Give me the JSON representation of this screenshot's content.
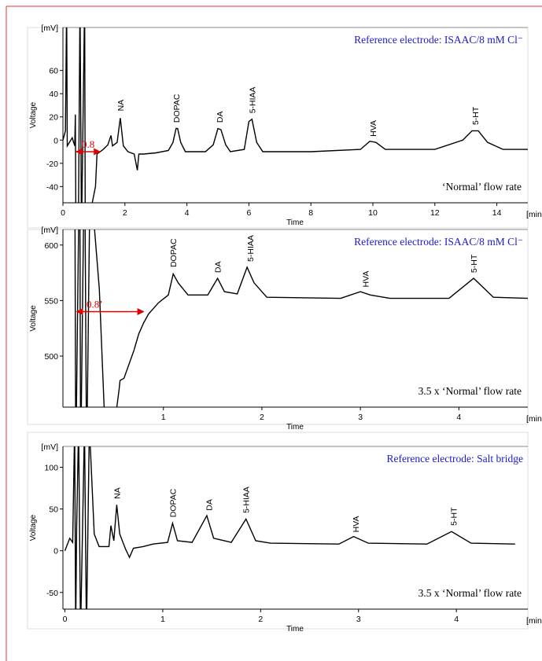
{
  "chart_data": [
    {
      "type": "line",
      "ylabel": "Voltage",
      "xlabel": "Time",
      "yunit": "[mV]",
      "xunit": "[min.]",
      "legend": "Reference electrode: ISAAC/8 mM Cl⁻",
      "note": "‘Normal’ flow rate",
      "xlim": [
        0,
        15
      ],
      "ylim": [
        -54,
        97
      ],
      "xticks": [
        0,
        2,
        4,
        6,
        8,
        10,
        12,
        14
      ],
      "yticks": [
        -40,
        -20,
        0,
        20,
        40,
        60
      ],
      "x": [
        0,
        0.08,
        0.12,
        0.14,
        0.3,
        0.38,
        0.4,
        0.42,
        0.5,
        0.55,
        0.6,
        0.7,
        0.72,
        0.9,
        1.05,
        1.1,
        1.3,
        1.45,
        1.55,
        1.6,
        1.75,
        1.85,
        1.95,
        2.1,
        2.3,
        2.4,
        2.45,
        2.6,
        3.0,
        3.4,
        3.55,
        3.65,
        3.7,
        3.8,
        3.95,
        4.6,
        4.85,
        5.0,
        5.1,
        5.25,
        5.4,
        5.85,
        6.0,
        6.1,
        6.25,
        6.45,
        8,
        9.6,
        9.9,
        10.1,
        10.4,
        12,
        12.9,
        13.2,
        13.4,
        13.7,
        14.2,
        15
      ],
      "series": [
        {
          "name": "Voltage",
          "color": "#000000",
          "values": [
            0,
            8,
            120,
            -5,
            2,
            -5,
            22,
            -80,
            -70,
            120,
            -80,
            120,
            -80,
            -60,
            -40,
            -12,
            -8,
            -4,
            4,
            -5,
            -2,
            19,
            -5,
            -10,
            -12,
            -26,
            -12,
            -12,
            -11,
            -9,
            -2,
            10,
            10,
            -2,
            -10,
            -10,
            -4,
            10,
            9,
            -4,
            -10,
            -8,
            16,
            18,
            -2,
            -10,
            -10,
            -8,
            -1,
            -2,
            -8,
            -8,
            0,
            8,
            8,
            -2,
            -8,
            -8
          ]
        }
      ],
      "annotations": [
        {
          "text": "NA",
          "x": 1.85,
          "y": 25
        },
        {
          "text": "DOPAC",
          "x": 3.65,
          "y": 15
        },
        {
          "text": "DA",
          "x": 5.05,
          "y": 15
        },
        {
          "text": "5-HIAA",
          "x": 6.1,
          "y": 23
        },
        {
          "text": "HVA",
          "x": 10,
          "y": 3
        },
        {
          "text": "5-HT",
          "x": 13.3,
          "y": 13
        }
      ],
      "arrow": {
        "text": "0.8",
        "x": [
          0.43,
          1.2
        ],
        "y": -10
      }
    },
    {
      "type": "line",
      "ylabel": "Voltage",
      "xlabel": "Time",
      "yunit": "[mV]",
      "xunit": "[min.]",
      "legend": "Reference electrode: ISAAC/8 mM Cl⁻",
      "note": "3.5 x ‘Normal’ flow rate",
      "xlim": [
        -0.02,
        4.7
      ],
      "ylim": [
        454,
        614
      ],
      "xticks": [
        1,
        2,
        3,
        4
      ],
      "yticks": [
        500,
        550,
        600
      ],
      "x": [
        0.1,
        0.11,
        0.15,
        0.16,
        0.2,
        0.22,
        0.25,
        0.3,
        0.35,
        0.4,
        0.45,
        0.55,
        0.56,
        0.6,
        0.7,
        0.75,
        0.8,
        0.85,
        0.95,
        1.05,
        1.1,
        1.15,
        1.25,
        1.45,
        1.55,
        1.62,
        1.75,
        1.85,
        1.92,
        2.05,
        2.8,
        3.0,
        3.1,
        3.3,
        3.9,
        4.15,
        4.35,
        4.7
      ],
      "series": [
        {
          "name": "Voltage",
          "color": "#000000",
          "values": [
            700,
            400,
            700,
            400,
            700,
            400,
            620,
            615,
            560,
            450,
            400,
            470,
            478,
            480,
            505,
            520,
            530,
            538,
            548,
            555,
            574,
            566,
            555,
            555,
            570,
            558,
            556,
            580,
            566,
            553,
            552,
            558,
            555,
            552,
            552,
            570,
            553,
            552
          ]
        }
      ],
      "annotations": [
        {
          "text": "DOPAC",
          "x": 1.1,
          "y": 580
        },
        {
          "text": "DA",
          "x": 1.55,
          "y": 575
        },
        {
          "text": "5-HIAA",
          "x": 1.88,
          "y": 585
        },
        {
          "text": "HVA",
          "x": 3.05,
          "y": 562
        },
        {
          "text": "5-HT",
          "x": 4.15,
          "y": 575
        }
      ],
      "arrow": {
        "text": "0.8’",
        "x": 0.12,
        "x2": 0.8,
        "y": 540
      }
    },
    {
      "type": "line",
      "ylabel": "Voltage",
      "xlabel": "Time",
      "yunit": "[mV]",
      "xunit": "[min.]",
      "legend": "Reference electrode: Salt bridge",
      "note": "3.5 x ‘Normal’ flow rate",
      "xlim": [
        -0.02,
        4.73
      ],
      "ylim": [
        -70,
        125
      ],
      "xticks": [
        0,
        1,
        2,
        3,
        4
      ],
      "yticks": [
        -50,
        0,
        50,
        100
      ],
      "x": [
        0,
        0.05,
        0.08,
        0.1,
        0.11,
        0.12,
        0.14,
        0.16,
        0.2,
        0.22,
        0.25,
        0.3,
        0.35,
        0.45,
        0.47,
        0.5,
        0.53,
        0.56,
        0.62,
        0.66,
        0.7,
        0.8,
        0.9,
        1.05,
        1.1,
        1.15,
        1.3,
        1.45,
        1.52,
        1.7,
        1.85,
        1.95,
        2.1,
        2.8,
        2.95,
        3.1,
        3.7,
        3.95,
        4.15,
        4.6
      ],
      "series": [
        {
          "name": "Voltage",
          "color": "#000000",
          "values": [
            0,
            15,
            10,
            150,
            -100,
            25,
            150,
            -100,
            150,
            -100,
            150,
            20,
            5,
            5,
            30,
            12,
            55,
            20,
            2,
            -8,
            3,
            5,
            8,
            10,
            33,
            12,
            10,
            42,
            15,
            10,
            38,
            12,
            9,
            8,
            17,
            9,
            8,
            23,
            9,
            8
          ]
        }
      ],
      "annotations": [
        {
          "text": "NA",
          "x": 0.53,
          "y": 62
        },
        {
          "text": "DOPAC",
          "x": 1.1,
          "y": 40
        },
        {
          "text": "DA",
          "x": 1.47,
          "y": 48
        },
        {
          "text": "5-HIAA",
          "x": 1.85,
          "y": 45
        },
        {
          "text": "HVA",
          "x": 2.97,
          "y": 22
        },
        {
          "text": "5-HT",
          "x": 3.97,
          "y": 30
        }
      ]
    }
  ]
}
